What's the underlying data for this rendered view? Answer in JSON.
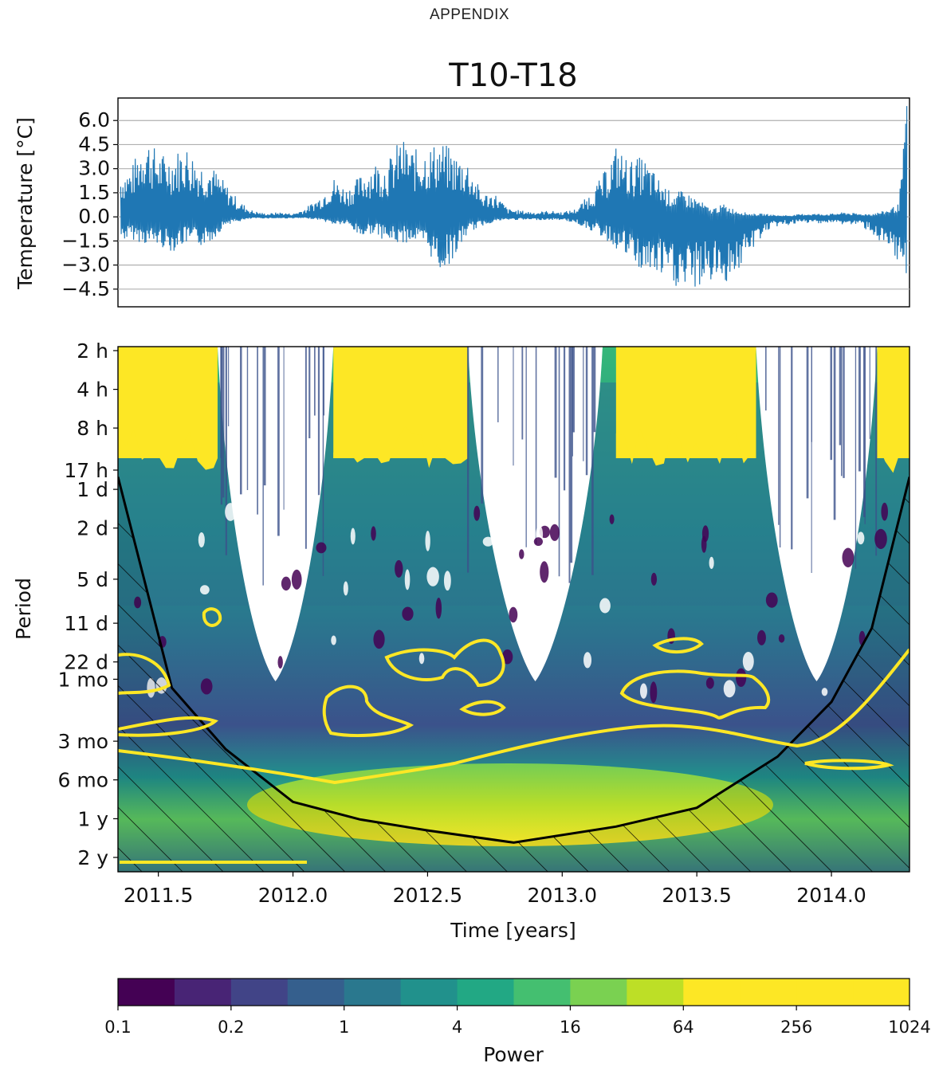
{
  "header": {
    "text": "APPENDIX"
  },
  "chart_data": [
    {
      "type": "line",
      "title": "T10-T18",
      "ylabel": "Temperature [°C]",
      "xlim": [
        2011.35,
        2014.29
      ],
      "ylim": [
        -5.6,
        7.4
      ],
      "yticks": [
        6.0,
        4.5,
        3.0,
        1.5,
        0.0,
        -1.5,
        -3.0,
        -4.5
      ],
      "ytick_labels": [
        "6.0",
        "4.5",
        "3.0",
        "1.5",
        "0.0",
        "−1.5",
        "−3.0",
        "−4.5"
      ],
      "grid": true,
      "series": [
        {
          "color": "#1f77b4",
          "x": [
            2011.36,
            2011.4,
            2011.45,
            2011.5,
            2011.55,
            2011.6,
            2011.65,
            2011.7,
            2011.75,
            2011.8,
            2011.85,
            2011.9,
            2011.95,
            2012.0,
            2012.05,
            2012.1,
            2012.15,
            2012.2,
            2012.25,
            2012.3,
            2012.35,
            2012.4,
            2012.45,
            2012.5,
            2012.55,
            2012.6,
            2012.65,
            2012.7,
            2012.75,
            2012.8,
            2012.85,
            2012.9,
            2012.95,
            2013.0,
            2013.05,
            2013.1,
            2013.15,
            2013.2,
            2013.25,
            2013.3,
            2013.35,
            2013.4,
            2013.45,
            2013.5,
            2013.55,
            2013.6,
            2013.65,
            2013.7,
            2013.75,
            2013.8,
            2013.85,
            2013.9,
            2013.95,
            2014.0,
            2014.05,
            2014.1,
            2014.15,
            2014.2,
            2014.25,
            2014.28
          ],
          "upper": [
            2.8,
            3.1,
            5.3,
            4.0,
            3.9,
            4.6,
            3.5,
            3.2,
            2.1,
            1.0,
            0.4,
            0.2,
            0.3,
            0.2,
            0.6,
            1.3,
            2.5,
            1.8,
            2.6,
            3.5,
            3.4,
            5.0,
            4.2,
            4.4,
            4.8,
            4.0,
            3.6,
            1.5,
            1.5,
            0.5,
            0.4,
            0.3,
            0.4,
            0.3,
            0.5,
            1.4,
            2.6,
            4.5,
            3.5,
            3.8,
            2.6,
            1.6,
            1.6,
            1.2,
            0.5,
            0.8,
            0.4,
            0.2,
            0.2,
            0.1,
            0.1,
            0.2,
            0.2,
            0.2,
            0.3,
            0.2,
            0.2,
            0.4,
            0.8,
            6.9
          ],
          "lower": [
            -1.5,
            -1.4,
            -1.7,
            -1.8,
            -2.2,
            -1.7,
            -1.9,
            -1.5,
            -0.5,
            -0.3,
            -0.1,
            -0.1,
            -0.1,
            -0.1,
            -0.1,
            -0.2,
            -0.5,
            -0.5,
            -1.3,
            -1.0,
            -1.6,
            -1.7,
            -1.5,
            -2.2,
            -3.5,
            -2.6,
            -1.0,
            -0.6,
            -0.3,
            -0.2,
            -0.2,
            -0.2,
            -0.2,
            -0.2,
            -0.4,
            -0.8,
            -1.3,
            -2.0,
            -2.7,
            -3.6,
            -3.7,
            -4.2,
            -4.8,
            -4.5,
            -4.1,
            -4.2,
            -3.5,
            -2.3,
            -1.0,
            -0.6,
            -0.5,
            -0.4,
            -0.4,
            -0.4,
            -0.5,
            -0.5,
            -1.0,
            -2.2,
            -3.2,
            -3.6
          ]
        }
      ]
    },
    {
      "type": "heatmap",
      "xlabel": "Time [years]",
      "ylabel": "Period",
      "xlim": [
        2011.35,
        2014.29
      ],
      "xticks": [
        2011.5,
        2012.0,
        2012.5,
        2013.0,
        2013.5,
        2014.0
      ],
      "xtick_labels": [
        "2011.5",
        "2012.0",
        "2012.5",
        "2013.0",
        "2013.5",
        "2014.0"
      ],
      "period_ticks": [
        {
          "label": "2 h",
          "days": 0.0833
        },
        {
          "label": "4 h",
          "days": 0.1667
        },
        {
          "label": "8 h",
          "days": 0.3333
        },
        {
          "label": "17 h",
          "days": 0.7083
        },
        {
          "label": "1 d",
          "days": 1
        },
        {
          "label": "2 d",
          "days": 2
        },
        {
          "label": "5 d",
          "days": 5
        },
        {
          "label": "11 d",
          "days": 11
        },
        {
          "label": "22 d",
          "days": 22
        },
        {
          "label": "1 mo",
          "days": 30
        },
        {
          "label": "3 mo",
          "days": 91
        },
        {
          "label": "6 mo",
          "days": 182
        },
        {
          "label": "1 y",
          "days": 365
        },
        {
          "label": "2 y",
          "days": 730
        }
      ],
      "cone_of_influence": {
        "x": [
          2011.35,
          2011.55,
          2011.75,
          2012.0,
          2012.25,
          2012.5,
          2012.82,
          2013.2,
          2013.5,
          2013.8,
          2014.0,
          2014.15,
          2014.29
        ],
        "period_days": [
          0.8,
          35,
          105,
          270,
          370,
          450,
          560,
          420,
          300,
          120,
          45,
          12,
          0.8
        ]
      },
      "high_power_bands": [
        {
          "x_start": 2011.35,
          "x_end": 2011.72
        },
        {
          "x_start": 2012.15,
          "x_end": 2012.65
        },
        {
          "x_start": 2013.2,
          "x_end": 2013.72
        },
        {
          "x_start": 2014.17,
          "x_end": 2014.29
        }
      ],
      "low_power_gaps": [
        {
          "x_start": 2011.72,
          "x_end": 2012.15
        },
        {
          "x_start": 2012.65,
          "x_end": 2013.15
        },
        {
          "x_start": 2013.72,
          "x_end": 2014.17
        }
      ]
    }
  ],
  "colorbar": {
    "label": "Power",
    "tick_labels": [
      "0.1",
      "0.2",
      "1",
      "4",
      "16",
      "64",
      "256",
      "1024"
    ],
    "colors": [
      "#440154",
      "#482475",
      "#414487",
      "#355f8d",
      "#2a788e",
      "#21918c",
      "#22a884",
      "#44bf70",
      "#7ad151",
      "#bddf26",
      "#fde725",
      "#fde725",
      "#fde725",
      "#fde725"
    ]
  }
}
